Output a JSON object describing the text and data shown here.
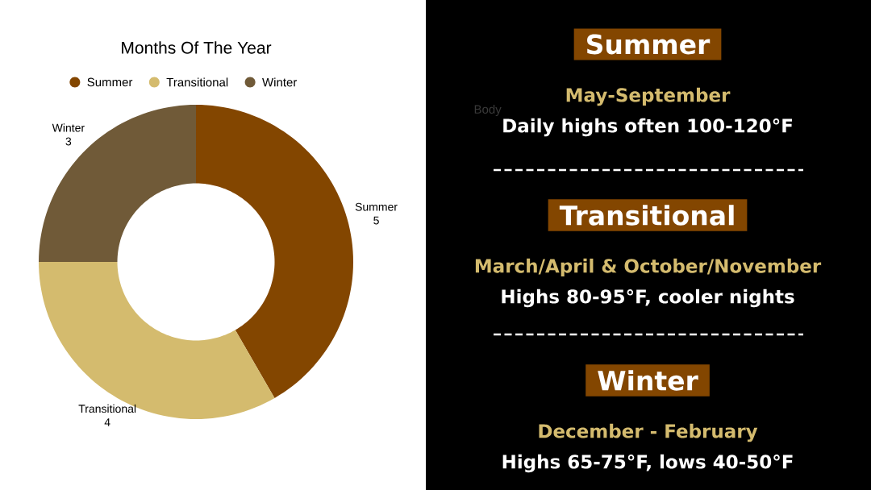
{
  "chart_data": [
    {
      "type": "donut",
      "title": "Months Of The Year",
      "categories": [
        "Summer",
        "Transitional",
        "Winter"
      ],
      "values": [
        5,
        4,
        3
      ],
      "colors": [
        "#834600",
        "#d4bb6e",
        "#705a38"
      ],
      "legend": "top",
      "data_labels": true
    },
    {
      "type": "other",
      "annotations": [
        "Summer",
        "May-September",
        "Daily highs often 100-120°F",
        "Transitional",
        "March/April & October/November",
        "Highs 80-95°F, cooler nights",
        "Winter",
        "December - February",
        "Highs 65-75°F, lows 40-50°F",
        "Body"
      ]
    }
  ]
}
